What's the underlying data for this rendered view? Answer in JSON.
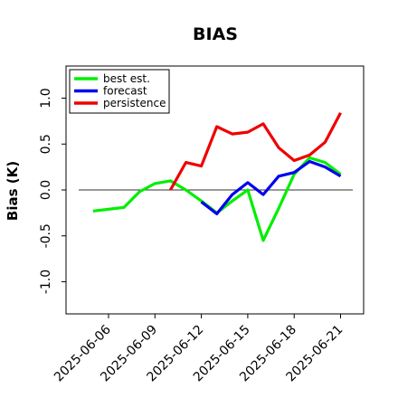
{
  "chart_data": {
    "type": "line",
    "title": "BIAS",
    "xlabel": "",
    "ylabel": "Bias (K)",
    "ylim": [
      -1.35,
      1.35
    ],
    "yticks": [
      -1.0,
      -0.5,
      0.0,
      0.5,
      1.0
    ],
    "xticks": [
      "2025-06-06",
      "2025-06-09",
      "2025-06-12",
      "2025-06-15",
      "2025-06-18",
      "2025-06-21"
    ],
    "xtick_colors": [
      "#000000",
      "#000000",
      "#228B22",
      "#000000",
      "#000000",
      "#000000"
    ],
    "reference_line": 0,
    "grid": false,
    "legend_placement": "top-left",
    "series": [
      {
        "name": "best est.",
        "color": "#00ee00",
        "x": [
          "2025-06-05",
          "2025-06-07",
          "2025-06-08",
          "2025-06-09",
          "2025-06-10",
          "2025-06-11",
          "2025-06-12",
          "2025-06-13",
          "2025-06-14",
          "2025-06-15",
          "2025-06-16",
          "2025-06-17",
          "2025-06-18",
          "2025-06-19",
          "2025-06-20",
          "2025-06-21"
        ],
        "values": [
          -0.23,
          -0.19,
          -0.02,
          0.07,
          0.1,
          0.0,
          -0.12,
          -0.25,
          -0.12,
          0.0,
          -0.55,
          -0.2,
          0.17,
          0.35,
          0.3,
          0.17
        ]
      },
      {
        "name": "forecast",
        "color": "#0000ee",
        "x": [
          "2025-06-12",
          "2025-06-13",
          "2025-06-14",
          "2025-06-15",
          "2025-06-16",
          "2025-06-17",
          "2025-06-18",
          "2025-06-19",
          "2025-06-20",
          "2025-06-21"
        ],
        "values": [
          -0.13,
          -0.26,
          -0.05,
          0.08,
          -0.05,
          0.15,
          0.19,
          0.31,
          0.25,
          0.15
        ]
      },
      {
        "name": "persistence",
        "color": "#ee0000",
        "x": [
          "2025-06-10",
          "2025-06-11",
          "2025-06-12",
          "2025-06-13",
          "2025-06-14",
          "2025-06-15",
          "2025-06-16",
          "2025-06-17",
          "2025-06-18",
          "2025-06-19",
          "2025-06-20",
          "2025-06-21"
        ],
        "values": [
          0.0,
          0.3,
          0.26,
          0.69,
          0.61,
          0.63,
          0.72,
          0.46,
          0.32,
          0.38,
          0.52,
          0.84
        ]
      }
    ]
  }
}
